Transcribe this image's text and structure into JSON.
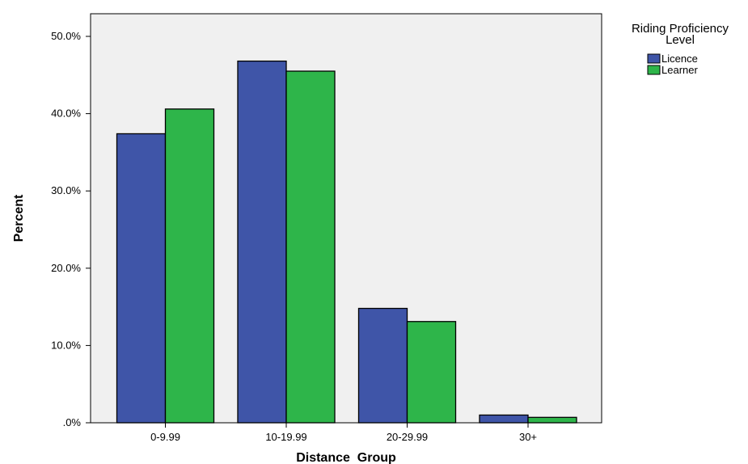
{
  "chart_data": {
    "type": "bar",
    "categories": [
      "0-9.99",
      "10-19.99",
      "20-29.99",
      "30+"
    ],
    "series": [
      {
        "name": "Licence",
        "values": [
          37.4,
          46.8,
          14.8,
          1.0
        ],
        "color": "#3f55a8"
      },
      {
        "name": "Learner",
        "values": [
          40.6,
          45.5,
          13.1,
          0.7
        ],
        "color": "#2eb54a"
      }
    ],
    "xlabel": "Distance  Group",
    "ylabel": "Percent",
    "ylim": [
      0,
      50
    ],
    "yticks": [
      {
        "value": 0,
        "label": ".0%"
      },
      {
        "value": 10,
        "label": "10.0%"
      },
      {
        "value": 20,
        "label": "20.0%"
      },
      {
        "value": 30,
        "label": "30.0%"
      },
      {
        "value": 40,
        "label": "40.0%"
      },
      {
        "value": 50,
        "label": "50.0%"
      }
    ],
    "legend": {
      "title_line1": "Riding Proficiency",
      "title_line2": "Level",
      "placement": "right"
    },
    "grid": false,
    "plot_background": "#f0f0f0"
  }
}
